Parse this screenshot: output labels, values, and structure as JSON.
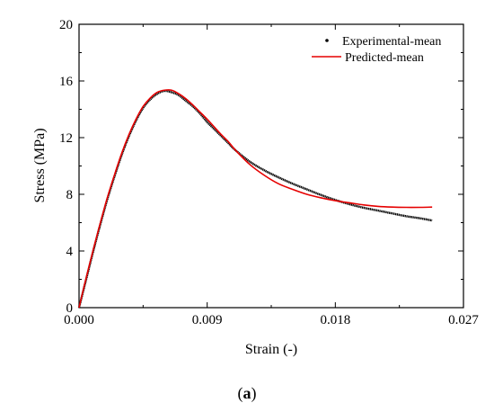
{
  "chart_data": {
    "type": "line",
    "xlabel": "Strain (-)",
    "ylabel": "Stress (MPa)",
    "xlim": [
      0,
      0.027
    ],
    "ylim": [
      0,
      20
    ],
    "x_ticks": [
      "0.000",
      "0.009",
      "0.018",
      "0.027"
    ],
    "y_ticks": [
      "0",
      "4",
      "8",
      "12",
      "16",
      "20"
    ],
    "legend_position": "top-right",
    "grid": false,
    "caption_bold": "a",
    "series": [
      {
        "name": "Experimental-mean",
        "style": "dotted",
        "color": "#000000",
        "x": [
          0,
          0.0005,
          0.001,
          0.0015,
          0.002,
          0.0025,
          0.003,
          0.0035,
          0.004,
          0.0045,
          0.005,
          0.0055,
          0.006,
          0.0065,
          0.007,
          0.0075,
          0.008,
          0.0085,
          0.009,
          0.0095,
          0.01,
          0.0105,
          0.011,
          0.012,
          0.013,
          0.014,
          0.015,
          0.016,
          0.017,
          0.018,
          0.019,
          0.02,
          0.021,
          0.022,
          0.023,
          0.024,
          0.0248
        ],
        "y": [
          0,
          2.0,
          4.0,
          5.9,
          7.7,
          9.3,
          10.8,
          12.1,
          13.2,
          14.1,
          14.7,
          15.1,
          15.3,
          15.2,
          15.0,
          14.6,
          14.2,
          13.7,
          13.1,
          12.6,
          12.1,
          11.6,
          11.1,
          10.3,
          9.7,
          9.2,
          8.75,
          8.35,
          7.95,
          7.6,
          7.3,
          7.05,
          6.85,
          6.65,
          6.45,
          6.3,
          6.15
        ]
      },
      {
        "name": "Predicted-mean",
        "style": "solid",
        "color": "#e60000",
        "x": [
          0,
          0.0005,
          0.001,
          0.0015,
          0.002,
          0.0025,
          0.003,
          0.0035,
          0.004,
          0.0045,
          0.005,
          0.0055,
          0.006,
          0.0065,
          0.007,
          0.0075,
          0.008,
          0.0085,
          0.009,
          0.0095,
          0.01,
          0.0105,
          0.011,
          0.012,
          0.013,
          0.014,
          0.015,
          0.016,
          0.017,
          0.018,
          0.019,
          0.02,
          0.021,
          0.022,
          0.023,
          0.024,
          0.0248
        ],
        "y": [
          0,
          2.1,
          4.1,
          6.0,
          7.8,
          9.4,
          10.9,
          12.2,
          13.3,
          14.2,
          14.8,
          15.2,
          15.35,
          15.35,
          15.1,
          14.75,
          14.3,
          13.8,
          13.3,
          12.75,
          12.2,
          11.7,
          11.1,
          10.1,
          9.35,
          8.75,
          8.35,
          8.0,
          7.75,
          7.55,
          7.4,
          7.25,
          7.15,
          7.1,
          7.08,
          7.08,
          7.1
        ]
      }
    ]
  }
}
